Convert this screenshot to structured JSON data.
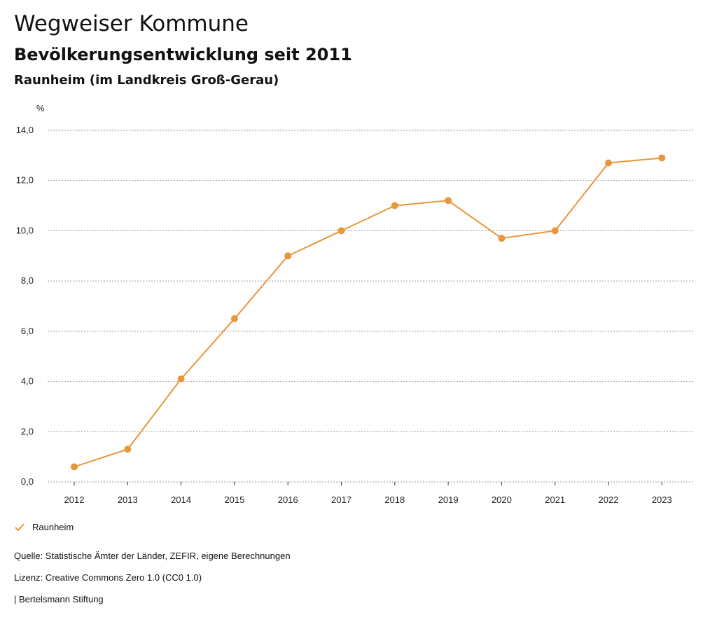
{
  "header": {
    "title": "Wegweiser Kommune",
    "subtitle": "Bevölkerungsentwicklung seit 2011",
    "region": "Raunheim (im Landkreis Groß-Gerau)"
  },
  "chart_data": {
    "type": "line",
    "title": "Bevölkerungsentwicklung seit 2011",
    "ylabel": "%",
    "xlabel": "",
    "ylim": [
      0,
      14
    ],
    "yticks": [
      0,
      2,
      4,
      6,
      8,
      10,
      12,
      14
    ],
    "ytick_labels": [
      "0,0",
      "2,0",
      "4,0",
      "6,0",
      "8,0",
      "10,0",
      "12,0",
      "14,0"
    ],
    "categories": [
      "2012",
      "2013",
      "2014",
      "2015",
      "2016",
      "2017",
      "2018",
      "2019",
      "2020",
      "2021",
      "2022",
      "2023"
    ],
    "series": [
      {
        "name": "Raunheim",
        "color": "#E8973A",
        "values": [
          0.6,
          1.3,
          4.1,
          6.5,
          9.0,
          10.0,
          11.0,
          11.2,
          9.7,
          10.0,
          12.7,
          12.9
        ]
      }
    ],
    "grid": true,
    "legend": "bottom-left"
  },
  "legend": {
    "label": "Raunheim"
  },
  "footer": {
    "source": "Quelle: Statistische Ämter der Länder, ZEFIR, eigene Berechnungen",
    "license": "Lizenz: Creative Commons Zero 1.0 (CC0 1.0)",
    "publisher": "| Bertelsmann Stiftung"
  },
  "colors": {
    "series": "#E8973A",
    "grid": "#999999"
  }
}
